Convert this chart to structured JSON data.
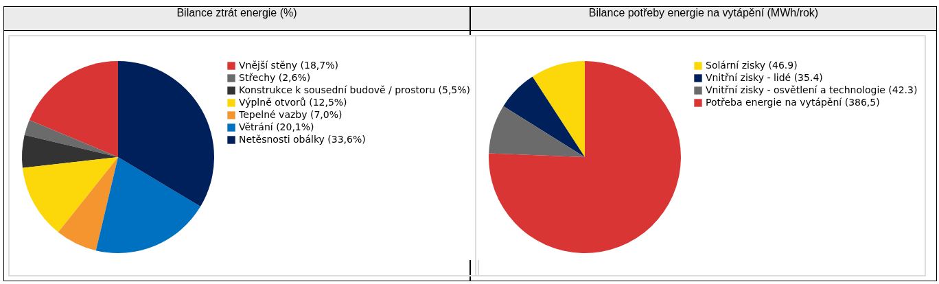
{
  "chart_data": [
    {
      "type": "pie",
      "title": "Bilance ztrát energie (%)",
      "legend": "right",
      "categories": [
        "Vnější stěny (18,7%)",
        "Střechy (2,6%)",
        "Konstrukce k sousední budově / prostoru (5,5%)",
        "Výplně otvorů (12,5%)",
        "Tepelné vazby (7,0%)",
        "Větrání (20,1%)",
        "Netěsnosti obálky (33,6%)"
      ],
      "values": [
        18.7,
        2.6,
        5.5,
        12.5,
        7.0,
        20.1,
        33.6
      ],
      "colors": [
        "#d93535",
        "#6b6b6b",
        "#333333",
        "#fcd80a",
        "#f5952f",
        "#0070c0",
        "#00205b"
      ]
    },
    {
      "type": "pie",
      "title": "Bilance potřeby energie na vytápění (MWh/rok)",
      "legend": "right",
      "categories": [
        "Solární zisky (46.9)",
        "Vnitřní zisky - lidé (35.4)",
        "Vnitřní zisky - osvětlení a technologie (42.3)",
        "Potřeba energie na vytápění (386,5)"
      ],
      "values": [
        46.9,
        35.4,
        42.3,
        386.5
      ],
      "colors": [
        "#fcd80a",
        "#00205b",
        "#6b6b6b",
        "#d93535"
      ]
    }
  ]
}
